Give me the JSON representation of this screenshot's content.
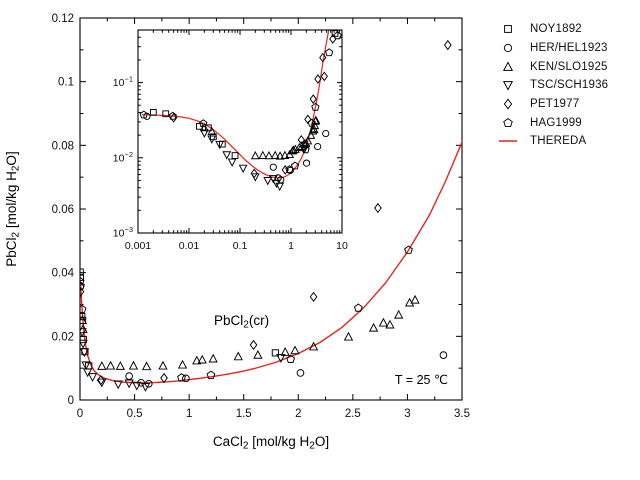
{
  "labels": {
    "x_axis": {
      "t1": "CaCl",
      "s1": "2",
      "t2": " [mol/kg H",
      "s2": "2",
      "t3": "O]"
    },
    "y_axis": {
      "t1": "PbCl",
      "s1": "2",
      "t2": " [mol/kg H",
      "s2": "2",
      "t3": "O]"
    },
    "phase": {
      "t1": "PbCl",
      "s1": "2",
      "t2": "(cr)"
    },
    "temperature": "T = 25 ℃"
  },
  "colors": {
    "curve": "#e62420",
    "marker": "#000000",
    "frame": "#000000",
    "background": "#ffffff"
  },
  "legend": {
    "items": [
      {
        "label": "NOY1892",
        "marker": "square"
      },
      {
        "label": "HER/HEL1923",
        "marker": "circle"
      },
      {
        "label": "KEN/SLO1925",
        "marker": "triangle-up"
      },
      {
        "label": "TSC/SCH1936",
        "marker": "triangle-down"
      },
      {
        "label": "PET1977",
        "marker": "diamond"
      },
      {
        "label": "HAG1999",
        "marker": "pentagon"
      },
      {
        "label": "THEREDA",
        "marker": "red-line"
      }
    ]
  },
  "chart_data": {
    "type": "scatter",
    "title": "",
    "xlabel": "CaCl2 [mol/kg H2O]",
    "ylabel": "PbCl2 [mol/kg H2O]",
    "annotations": [
      "PbCl2(cr)",
      "T = 25 ℃"
    ],
    "main_axes": {
      "xscale": "linear",
      "yscale": "linear",
      "xlim": [
        0,
        3.5
      ],
      "ylim": [
        0,
        0.12
      ],
      "x_major_ticks": [
        0,
        0.5,
        1,
        1.5,
        2,
        2.5,
        3,
        3.5
      ],
      "x_minor_step": 0.25,
      "y_major_ticks": [
        0,
        0.02,
        0.04,
        0.06,
        0.08,
        0.1,
        0.12
      ],
      "y_minor_step": 0.01,
      "grid": false,
      "legend_position": "outside-right"
    },
    "inset_axes": {
      "xscale": "log",
      "yscale": "log",
      "xlim": [
        0.001,
        10
      ],
      "ylim": [
        0.001,
        0.5
      ],
      "x_tick_labels": [
        "0.001",
        "0.01",
        "0.1",
        "1",
        "10"
      ],
      "y_tick_exponents": [
        -1,
        -2,
        -3
      ]
    },
    "series": [
      {
        "name": "NOY1892",
        "marker": "square",
        "points": [
          [
            0.002,
            0.0402
          ],
          [
            0.0035,
            0.0385
          ],
          [
            0.016,
            0.0262
          ],
          [
            0.024,
            0.025
          ],
          [
            0.03,
            0.019
          ],
          [
            0.045,
            0.0152
          ],
          [
            0.08,
            0.0107
          ],
          [
            1.79,
            0.0148
          ],
          [
            7.3,
            0.45
          ]
        ]
      },
      {
        "name": "HER/HEL1923",
        "marker": "circle",
        "points": [
          [
            0.0015,
            0.0356
          ],
          [
            0.45,
            0.0075
          ],
          [
            0.56,
            0.0054
          ],
          [
            0.63,
            0.0051
          ],
          [
            0.97,
            0.0068
          ],
          [
            2.02,
            0.0085
          ],
          [
            3.33,
            0.0141
          ],
          [
            4.8,
            0.021
          ]
        ]
      },
      {
        "name": "KEN/SLO1925",
        "marker": "triangle-up",
        "points": [
          [
            0.02,
            0.025
          ],
          [
            0.028,
            0.0222
          ],
          [
            0.2,
            0.0106
          ],
          [
            0.28,
            0.0107
          ],
          [
            0.37,
            0.0106
          ],
          [
            0.49,
            0.0107
          ],
          [
            0.61,
            0.0105
          ],
          [
            0.76,
            0.0107
          ],
          [
            0.94,
            0.011
          ],
          [
            1.07,
            0.0123
          ],
          [
            1.12,
            0.0126
          ],
          [
            1.22,
            0.0129
          ],
          [
            1.45,
            0.0136
          ],
          [
            1.63,
            0.0141
          ],
          [
            1.88,
            0.015
          ],
          [
            1.97,
            0.0155
          ],
          [
            2.14,
            0.0167
          ],
          [
            2.46,
            0.0198
          ],
          [
            2.69,
            0.0226
          ],
          [
            2.78,
            0.0242
          ],
          [
            2.84,
            0.0236
          ],
          [
            2.92,
            0.0267
          ],
          [
            3.02,
            0.0305
          ],
          [
            3.07,
            0.0314
          ]
        ]
      },
      {
        "name": "TSC/SCH1936",
        "marker": "triangle-down",
        "points": [
          [
            0.02,
            0.0214
          ],
          [
            0.028,
            0.0178
          ],
          [
            0.04,
            0.0151
          ],
          [
            0.055,
            0.011
          ],
          [
            0.07,
            0.0088
          ],
          [
            0.115,
            0.0073
          ],
          [
            0.2,
            0.0056
          ],
          [
            0.35,
            0.005
          ],
          [
            0.45,
            0.0053
          ],
          [
            0.52,
            0.0046
          ],
          [
            0.6,
            0.0042
          ],
          [
            1.84,
            0.0133
          ]
        ]
      },
      {
        "name": "PET1977",
        "marker": "diamond",
        "points": [
          [
            0.005,
            0.034
          ],
          [
            0.19,
            0.0062
          ],
          [
            0.77,
            0.0069
          ],
          [
            1.59,
            0.0173
          ],
          [
            2.14,
            0.0324
          ],
          [
            2.73,
            0.0603
          ],
          [
            3.37,
            0.1115
          ],
          [
            4.2,
            0.215
          ],
          [
            4.5,
            0.121
          ],
          [
            6.6,
            0.38
          ]
        ]
      },
      {
        "name": "HAG1999",
        "marker": "pentagon",
        "points": [
          [
            0.0013,
            0.0372
          ],
          [
            0.0048,
            0.0358
          ],
          [
            0.019,
            0.0285
          ],
          [
            0.93,
            0.007
          ],
          [
            1.2,
            0.0078
          ],
          [
            1.93,
            0.0128
          ],
          [
            2.55,
            0.0289
          ],
          [
            3.01,
            0.0471
          ],
          [
            5.6,
            0.25
          ],
          [
            8.2,
            0.42
          ]
        ]
      }
    ],
    "thereda_curve": {
      "name": "THEREDA",
      "color": "#e62420",
      "points": [
        [
          0,
          0.0375
        ],
        [
          0.0012,
          0.0374
        ],
        [
          0.002,
          0.0371
        ],
        [
          0.004,
          0.0362
        ],
        [
          0.007,
          0.035
        ],
        [
          0.01,
          0.0335
        ],
        [
          0.015,
          0.0308
        ],
        [
          0.02,
          0.0282
        ],
        [
          0.03,
          0.0237
        ],
        [
          0.04,
          0.0202
        ],
        [
          0.05,
          0.0176
        ],
        [
          0.07,
          0.014
        ],
        [
          0.1,
          0.011
        ],
        [
          0.13,
          0.0092
        ],
        [
          0.17,
          0.0079
        ],
        [
          0.22,
          0.0069
        ],
        [
          0.3,
          0.0061
        ],
        [
          0.4,
          0.0056
        ],
        [
          0.5,
          0.0054
        ],
        [
          0.6,
          0.0054
        ],
        [
          0.7,
          0.0055
        ],
        [
          0.8,
          0.0057
        ],
        [
          0.9,
          0.006
        ],
        [
          1.0,
          0.0064
        ],
        [
          1.1,
          0.0068
        ],
        [
          1.2,
          0.0073
        ],
        [
          1.35,
          0.0081
        ],
        [
          1.5,
          0.0091
        ],
        [
          1.6,
          0.0099
        ],
        [
          1.8,
          0.0119
        ],
        [
          2.0,
          0.0146
        ],
        [
          2.2,
          0.0181
        ],
        [
          2.4,
          0.0228
        ],
        [
          2.6,
          0.029
        ],
        [
          2.8,
          0.0368
        ],
        [
          3.0,
          0.0465
        ],
        [
          3.2,
          0.058
        ],
        [
          3.35,
          0.0688
        ],
        [
          3.5,
          0.081
        ],
        [
          3.7,
          0.103
        ],
        [
          4.0,
          0.145
        ],
        [
          4.3,
          0.2
        ],
        [
          4.7,
          0.28
        ],
        [
          5.1,
          0.38
        ],
        [
          5.5,
          0.5
        ],
        [
          5.8,
          0.6
        ]
      ]
    }
  }
}
